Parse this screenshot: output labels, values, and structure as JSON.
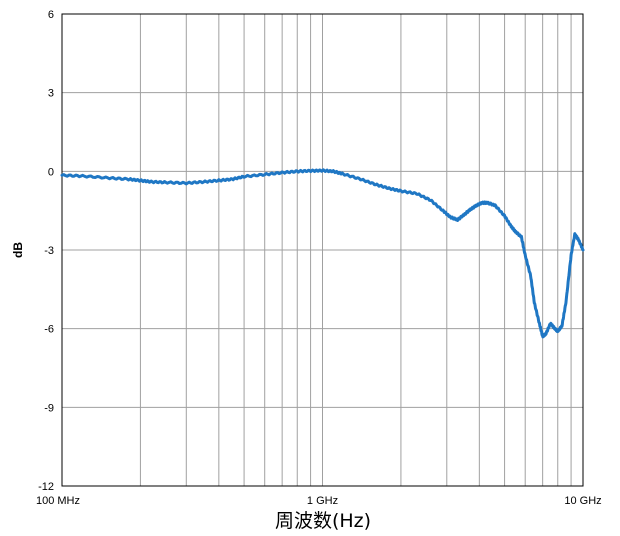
{
  "chart_data": {
    "type": "line",
    "x_scale": "log",
    "xlim_hz": [
      100000000,
      10000000000
    ],
    "ylim": [
      -12,
      6
    ],
    "grid": true,
    "xlabel": "周波数(Hz)",
    "ylabel": "dB",
    "y_ticks": [
      6,
      3,
      0,
      -3,
      -6,
      -9,
      -12
    ],
    "x_tick_labels": [
      {
        "value_hz": 100000000,
        "label": "100 MHz"
      },
      {
        "value_hz": 1000000000,
        "label": "1 GHz"
      },
      {
        "value_hz": 10000000000,
        "label": "10 GHz"
      }
    ],
    "series": [
      {
        "color": "#1f77c4",
        "x_hz": [
          100000000,
          120000000,
          150000000,
          180000000,
          200000000,
          220000000,
          250000000,
          300000000,
          350000000,
          400000000,
          450000000,
          500000000,
          600000000,
          700000000,
          800000000,
          900000000,
          1000000000,
          1100000000,
          1200000000,
          1400000000,
          1600000000,
          1800000000,
          2000000000,
          2300000000,
          2600000000,
          2900000000,
          3100000000,
          3300000000,
          3500000000,
          3700000000,
          3900000000,
          4100000000,
          4300000000,
          4600000000,
          5000000000,
          5300000000,
          5500000000,
          5800000000,
          6000000000,
          6300000000,
          6500000000,
          6800000000,
          7000000000,
          7200000000,
          7500000000,
          7800000000,
          8000000000,
          8300000000,
          8600000000,
          9000000000,
          9300000000,
          9600000000,
          10000000000
        ],
        "y": [
          -0.15,
          -0.18,
          -0.25,
          -0.3,
          -0.35,
          -0.4,
          -0.42,
          -0.45,
          -0.4,
          -0.35,
          -0.3,
          -0.2,
          -0.12,
          -0.05,
          0.0,
          0.02,
          0.03,
          0.0,
          -0.1,
          -0.3,
          -0.5,
          -0.65,
          -0.75,
          -0.85,
          -1.1,
          -1.5,
          -1.75,
          -1.85,
          -1.65,
          -1.45,
          -1.3,
          -1.2,
          -1.2,
          -1.3,
          -1.7,
          -2.1,
          -2.3,
          -2.5,
          -3.2,
          -4.0,
          -5.0,
          -5.8,
          -6.3,
          -6.2,
          -5.8,
          -6.0,
          -6.1,
          -5.9,
          -5.0,
          -3.2,
          -2.4,
          -2.6,
          -3.0
        ]
      }
    ]
  }
}
